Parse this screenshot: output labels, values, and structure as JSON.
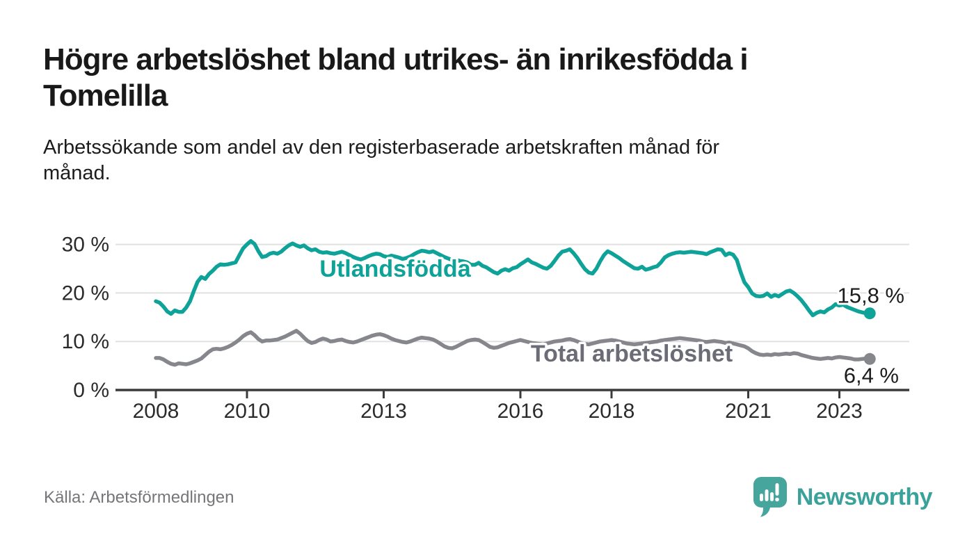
{
  "header": {
    "title_lines": [
      "Högre arbetslöshet bland utrikes- än inrikesfödda i",
      "Tomelilla"
    ],
    "subtitle_lines": [
      "Arbetssökande som andel av den registerbaserade arbetskraften månad för",
      "månad."
    ]
  },
  "source_label": "Källa: Arbetsförmedlingen",
  "brand": {
    "name": "Newsworthy",
    "logo_color": "#46a59d",
    "word_color": "#3aa29a"
  },
  "chart_data": {
    "type": "line",
    "unit": "%",
    "grid": "horizontal",
    "x_axis": {
      "start_year": 2008,
      "months_per_point": 1,
      "ticks": [
        {
          "year": 2008,
          "label": "2008"
        },
        {
          "year": 2010,
          "label": "2010"
        },
        {
          "year": 2013,
          "label": "2013"
        },
        {
          "year": 2016,
          "label": "2016"
        },
        {
          "year": 2018,
          "label": "2018"
        },
        {
          "year": 2021,
          "label": "2021"
        },
        {
          "year": 2023,
          "label": "2023"
        }
      ]
    },
    "y_axis": {
      "max": 32,
      "ticks": [
        {
          "value": 0,
          "label": "0 %"
        },
        {
          "value": 10,
          "label": "10 %"
        },
        {
          "value": 20,
          "label": "20 %"
        },
        {
          "value": 30,
          "label": "30 %"
        }
      ]
    },
    "series": [
      {
        "name": "Utlandsfödda",
        "color": "#0ea298",
        "label_color": "#0ea298",
        "end_label": "15,8 %",
        "values": [
          18.3,
          18.0,
          17.2,
          16.2,
          15.7,
          16.4,
          16.1,
          16.1,
          17.0,
          18.3,
          20.4,
          22.3,
          23.3,
          22.9,
          23.9,
          24.6,
          25.4,
          25.9,
          25.8,
          25.9,
          26.1,
          26.3,
          27.8,
          29.2,
          30.0,
          30.7,
          30.1,
          28.6,
          27.4,
          27.6,
          28.1,
          28.3,
          28.1,
          28.5,
          29.2,
          29.8,
          30.2,
          29.8,
          29.5,
          29.8,
          29.2,
          28.8,
          29.0,
          28.5,
          28.3,
          28.4,
          28.2,
          28.1,
          28.3,
          28.5,
          28.2,
          27.8,
          27.4,
          27.1,
          26.9,
          27.2,
          27.6,
          27.9,
          28.1,
          28.0,
          27.6,
          27.4,
          27.7,
          27.5,
          27.3,
          27.0,
          27.2,
          27.5,
          28.0,
          28.4,
          28.7,
          28.6,
          28.4,
          28.6,
          28.2,
          27.8,
          27.4,
          27.1,
          26.8,
          26.9,
          26.6,
          26.5,
          26.3,
          25.8,
          25.8,
          26.2,
          25.6,
          25.3,
          24.8,
          24.3,
          24.0,
          24.6,
          24.9,
          24.6,
          25.1,
          25.3,
          25.9,
          26.4,
          26.9,
          26.3,
          26.0,
          25.6,
          25.2,
          25.0,
          25.6,
          26.6,
          27.7,
          28.5,
          28.7,
          29.0,
          28.2,
          27.2,
          26.0,
          24.9,
          24.2,
          24.0,
          25.0,
          26.5,
          27.8,
          28.6,
          28.2,
          27.7,
          27.2,
          26.6,
          26.1,
          25.6,
          25.1,
          25.0,
          25.4,
          24.8,
          25.0,
          25.3,
          25.5,
          26.3,
          27.3,
          27.8,
          28.1,
          28.3,
          28.4,
          28.3,
          28.4,
          28.5,
          28.4,
          28.3,
          28.2,
          28.0,
          28.4,
          28.7,
          29.0,
          28.9,
          27.8,
          28.2,
          27.9,
          26.8,
          24.3,
          22.2,
          21.2,
          19.9,
          19.4,
          19.3,
          19.4,
          19.9,
          19.2,
          19.6,
          19.3,
          19.8,
          20.3,
          20.5,
          20.0,
          19.3,
          18.5,
          17.5,
          16.4,
          15.4,
          15.9,
          16.2,
          16.0,
          16.6,
          17.0,
          17.7,
          17.4,
          17.6,
          17.1,
          16.8,
          16.5,
          16.2,
          16.0,
          15.8,
          15.8
        ]
      },
      {
        "name": "Total arbetslöshet",
        "color": "#86868d",
        "label_color": "#6c6c76",
        "end_label": "6,4 %",
        "values": [
          6.6,
          6.6,
          6.3,
          5.8,
          5.4,
          5.2,
          5.5,
          5.4,
          5.3,
          5.5,
          5.8,
          6.1,
          6.5,
          7.2,
          7.9,
          8.4,
          8.5,
          8.4,
          8.6,
          8.9,
          9.3,
          9.8,
          10.4,
          11.1,
          11.6,
          11.9,
          11.3,
          10.5,
          10.0,
          10.2,
          10.2,
          10.3,
          10.4,
          10.7,
          11.0,
          11.4,
          11.8,
          12.2,
          11.6,
          10.8,
          10.1,
          9.7,
          9.9,
          10.3,
          10.6,
          10.4,
          10.0,
          10.1,
          10.3,
          10.4,
          10.1,
          9.9,
          9.8,
          10.0,
          10.3,
          10.6,
          10.9,
          11.2,
          11.4,
          11.5,
          11.3,
          11.0,
          10.6,
          10.3,
          10.1,
          9.9,
          9.8,
          10.0,
          10.3,
          10.6,
          10.8,
          10.7,
          10.6,
          10.4,
          10.0,
          9.5,
          9.0,
          8.7,
          8.6,
          8.9,
          9.3,
          9.7,
          10.1,
          10.3,
          10.4,
          10.3,
          9.9,
          9.4,
          8.9,
          8.7,
          8.8,
          9.1,
          9.4,
          9.7,
          9.9,
          10.1,
          10.3,
          10.1,
          9.9,
          9.7,
          9.6,
          9.5,
          9.4,
          9.6,
          9.8,
          10.0,
          10.1,
          10.2,
          10.4,
          10.5,
          10.3,
          10.0,
          9.7,
          9.5,
          9.4,
          9.6,
          9.8,
          10.0,
          10.1,
          10.2,
          10.3,
          10.2,
          10.0,
          9.8,
          9.6,
          9.5,
          9.4,
          9.5,
          9.6,
          9.7,
          9.8,
          9.9,
          10.0,
          10.2,
          10.3,
          10.4,
          10.5,
          10.6,
          10.7,
          10.6,
          10.5,
          10.4,
          10.3,
          10.2,
          10.0,
          9.9,
          10.0,
          10.1,
          10.0,
          9.9,
          9.7,
          9.8,
          9.6,
          9.4,
          9.2,
          9.0,
          8.6,
          8.0,
          7.6,
          7.3,
          7.2,
          7.3,
          7.2,
          7.4,
          7.3,
          7.4,
          7.5,
          7.4,
          7.6,
          7.5,
          7.2,
          7.0,
          6.8,
          6.6,
          6.5,
          6.4,
          6.5,
          6.6,
          6.5,
          6.7,
          6.8,
          6.7,
          6.6,
          6.5,
          6.3,
          6.3,
          6.4,
          6.5,
          6.4
        ]
      }
    ]
  }
}
